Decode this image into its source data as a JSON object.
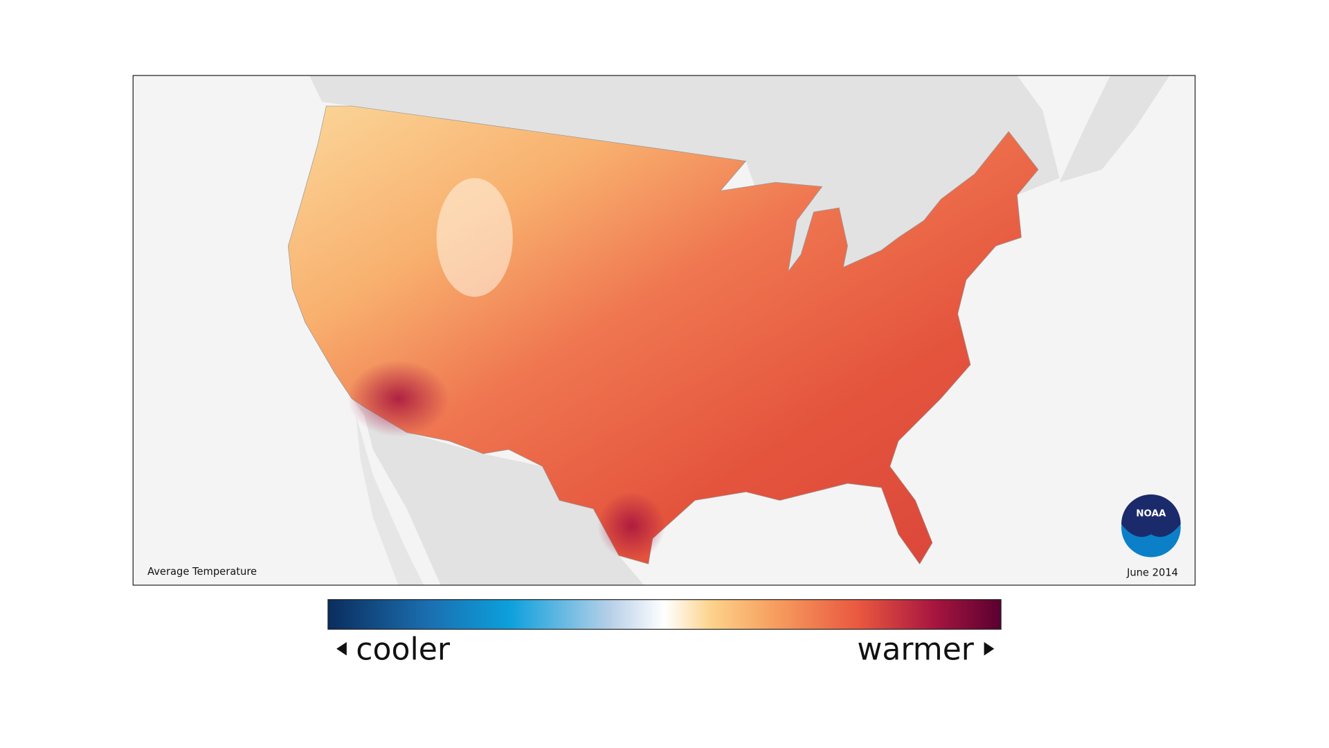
{
  "map": {
    "title": "Average Temperature",
    "date": "June 2014",
    "logo": "NOAA"
  },
  "legend": {
    "low_label": "cooler",
    "high_label": "warmer"
  }
}
